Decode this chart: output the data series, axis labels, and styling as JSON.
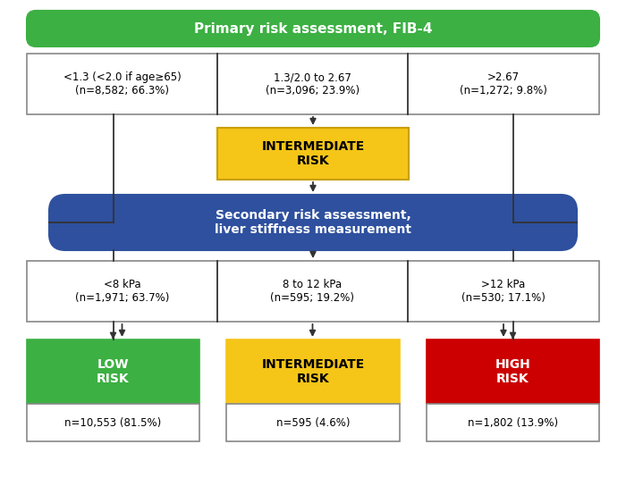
{
  "title": "Primary risk assessment, FIB-4",
  "title_color": "#ffffff",
  "title_bg": "#3cb043",
  "intermediate_risk_label": "INTERMEDIATE\nRISK",
  "intermediate_risk_bg": "#f5c518",
  "secondary_label": "Secondary risk assessment,\nliver stiffness measurement",
  "secondary_bg": "#2e509e",
  "secondary_text_color": "#ffffff",
  "fib4_texts": [
    "<1.3 (<2.0 if age≥65)\n(n=8,582; 66.3%)",
    "1.3/2.0 to 2.67\n(n=3,096; 23.9%)",
    ">2.67\n(n=1,272; 9.8%)"
  ],
  "lsm_texts": [
    "<8 kPa\n(n=1,971; 63.7%)",
    "8 to 12 kPa\n(n=595; 19.2%)",
    ">12 kPa\n(n=530; 17.1%)"
  ],
  "outcome_labels": [
    "LOW\nRISK",
    "INTERMEDIATE\nRISK",
    "HIGH\nRISK"
  ],
  "outcome_values": [
    "n=10,553 (81.5%)",
    "n=595 (4.6%)",
    "n=1,802 (13.9%)"
  ],
  "outcome_bgs": [
    "#3cb043",
    "#f5c518",
    "#cc0000"
  ],
  "outcome_text_colors": [
    "#ffffff",
    "#000000",
    "#ffffff"
  ],
  "box_border_color": "#888888",
  "box_text_color": "#000000",
  "arrow_color": "#333333",
  "bg_color": "#ffffff"
}
